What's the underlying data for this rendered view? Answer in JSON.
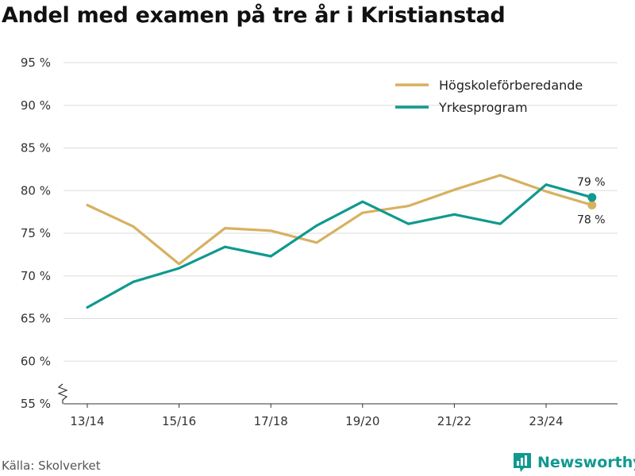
{
  "header": {
    "title": "Andel med examen på tre år i Kristianstad"
  },
  "footer": {
    "source": "Källa: Skolverket",
    "brand": "Newsworthy"
  },
  "colors": {
    "series_1": "#d6b160",
    "series_2": "#10998f",
    "grid": "#dddddd",
    "axis": "#333333",
    "brand": "#10998f"
  },
  "chart_data": {
    "type": "line",
    "title": "Andel med examen på tre år i Kristianstad",
    "xlabel": "",
    "ylabel": "",
    "ylim": [
      55,
      95
    ],
    "yticks": [
      55,
      60,
      65,
      70,
      75,
      80,
      85,
      90,
      95
    ],
    "ytick_suffix": " %",
    "axis_break": true,
    "grid": true,
    "legend_position": "top-right",
    "x": [
      "13/14",
      "14/15",
      "15/16",
      "16/17",
      "17/18",
      "18/19",
      "19/20",
      "20/21",
      "21/22",
      "22/23",
      "23/24",
      "24/25"
    ],
    "xtick_labels": [
      "13/14",
      "15/16",
      "17/18",
      "19/20",
      "21/22",
      "23/24"
    ],
    "series": [
      {
        "name": "Högskoleförberedande",
        "values": [
          78.3,
          75.8,
          71.4,
          75.6,
          75.3,
          73.9,
          77.4,
          78.2,
          80.1,
          81.8,
          79.9,
          78.3
        ],
        "end_label": "78 %"
      },
      {
        "name": "Yrkesprogram",
        "values": [
          66.3,
          69.3,
          70.9,
          73.4,
          72.3,
          75.9,
          78.7,
          76.1,
          77.2,
          76.1,
          80.7,
          79.2
        ],
        "end_label": "79 %"
      }
    ]
  }
}
